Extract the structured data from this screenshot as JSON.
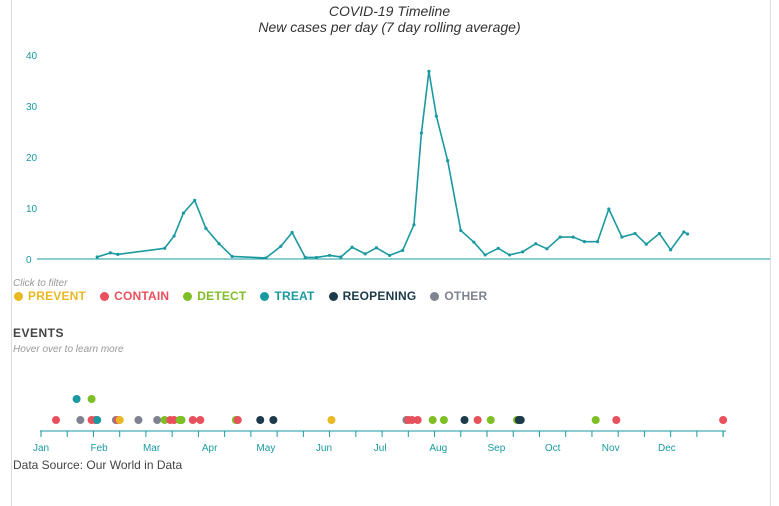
{
  "chart_data": {
    "type": "line",
    "title": "COVID-19 Timeline",
    "subtitle": "New cases per day (7 day rolling average)",
    "ylim": [
      0,
      40
    ],
    "y_ticks": [
      "0",
      "10",
      "20",
      "30",
      "40"
    ],
    "x_ticks": [
      "Jan",
      "Feb",
      "Mar",
      "Apr",
      "May",
      "Jun",
      "Jul",
      "Aug",
      "Sep",
      "Oct",
      "Nov",
      "Dec"
    ],
    "grid": false,
    "line_color": "#1a9aa0",
    "series": [
      {
        "points": [
          [
            30,
            0.4
          ],
          [
            37,
            1.2
          ],
          [
            41,
            0.9
          ],
          [
            66,
            2.1
          ],
          [
            71,
            4.5
          ],
          [
            76,
            9.0
          ],
          [
            82,
            11.5
          ],
          [
            88,
            6.0
          ],
          [
            95,
            3.0
          ],
          [
            102,
            0.5
          ],
          [
            120,
            0.2
          ],
          [
            128,
            2.5
          ],
          [
            134,
            5.2
          ],
          [
            141,
            0.3
          ],
          [
            147,
            0.3
          ],
          [
            154,
            0.7
          ],
          [
            160,
            0.4
          ],
          [
            166,
            2.3
          ],
          [
            173,
            1.0
          ],
          [
            179,
            2.2
          ],
          [
            186,
            0.7
          ],
          [
            193,
            1.7
          ],
          [
            199,
            6.7
          ],
          [
            203,
            24.7
          ],
          [
            207,
            36.8
          ],
          [
            211,
            28.0
          ],
          [
            217,
            19.3
          ],
          [
            224,
            5.6
          ],
          [
            231,
            3.3
          ],
          [
            237,
            0.8
          ],
          [
            244,
            2.1
          ],
          [
            250,
            0.8
          ],
          [
            257,
            1.4
          ],
          [
            264,
            3.0
          ],
          [
            270,
            2.0
          ],
          [
            277,
            4.3
          ],
          [
            284,
            4.3
          ],
          [
            290,
            3.4
          ],
          [
            297,
            3.4
          ],
          [
            303,
            9.8
          ],
          [
            310,
            4.3
          ],
          [
            317,
            5.0
          ],
          [
            323,
            2.9
          ],
          [
            330,
            5.0
          ],
          [
            336,
            1.8
          ],
          [
            343,
            5.3
          ],
          [
            345,
            4.9
          ]
        ]
      }
    ]
  },
  "legend": {
    "hint": "Click to filter",
    "items": [
      {
        "label": "PREVENT",
        "color": "#e8b923"
      },
      {
        "label": "CONTAIN",
        "color": "#e8505b"
      },
      {
        "label": "DETECT",
        "color": "#7fbf26"
      },
      {
        "label": "TREAT",
        "color": "#1a9aa0"
      },
      {
        "label": "REOPENING",
        "color": "#1c3a4a"
      },
      {
        "label": "OTHER",
        "color": "#7f8290"
      }
    ]
  },
  "events": {
    "title": "EVENTS",
    "hint": "Hover over to learn more",
    "points": [
      {
        "day": 8,
        "cat": "CONTAIN"
      },
      {
        "day": 21,
        "cat": "OTHER"
      },
      {
        "day": 19,
        "cat": "TREAT",
        "row": 1
      },
      {
        "day": 27,
        "cat": "DETECT",
        "row": 1
      },
      {
        "day": 27,
        "cat": "CONTAIN"
      },
      {
        "day": 29,
        "cat": "CONTAIN"
      },
      {
        "day": 30,
        "cat": "TREAT"
      },
      {
        "day": 40,
        "cat": "OTHER"
      },
      {
        "day": 41,
        "cat": "CONTAIN"
      },
      {
        "day": 42,
        "cat": "PREVENT"
      },
      {
        "day": 52,
        "cat": "OTHER"
      },
      {
        "day": 62,
        "cat": "OTHER"
      },
      {
        "day": 66,
        "cat": "DETECT"
      },
      {
        "day": 69,
        "cat": "CONTAIN"
      },
      {
        "day": 71,
        "cat": "CONTAIN"
      },
      {
        "day": 74,
        "cat": "DETECT"
      },
      {
        "day": 75,
        "cat": "DETECT"
      },
      {
        "day": 81,
        "cat": "CONTAIN"
      },
      {
        "day": 85,
        "cat": "CONTAIN"
      },
      {
        "day": 104,
        "cat": "DETECT"
      },
      {
        "day": 105,
        "cat": "CONTAIN"
      },
      {
        "day": 117,
        "cat": "REOPENING"
      },
      {
        "day": 124,
        "cat": "REOPENING"
      },
      {
        "day": 155,
        "cat": "PREVENT"
      },
      {
        "day": 195,
        "cat": "OTHER"
      },
      {
        "day": 196,
        "cat": "CONTAIN"
      },
      {
        "day": 198,
        "cat": "CONTAIN"
      },
      {
        "day": 201,
        "cat": "CONTAIN"
      },
      {
        "day": 209,
        "cat": "DETECT"
      },
      {
        "day": 215,
        "cat": "DETECT"
      },
      {
        "day": 226,
        "cat": "REOPENING"
      },
      {
        "day": 233,
        "cat": "CONTAIN"
      },
      {
        "day": 240,
        "cat": "DETECT"
      },
      {
        "day": 254,
        "cat": "DETECT"
      },
      {
        "day": 255,
        "cat": "REOPENING"
      },
      {
        "day": 256,
        "cat": "REOPENING"
      },
      {
        "day": 296,
        "cat": "DETECT"
      },
      {
        "day": 307,
        "cat": "CONTAIN"
      },
      {
        "day": 364,
        "cat": "CONTAIN"
      }
    ]
  },
  "source": "Data Source: Our World in Data"
}
